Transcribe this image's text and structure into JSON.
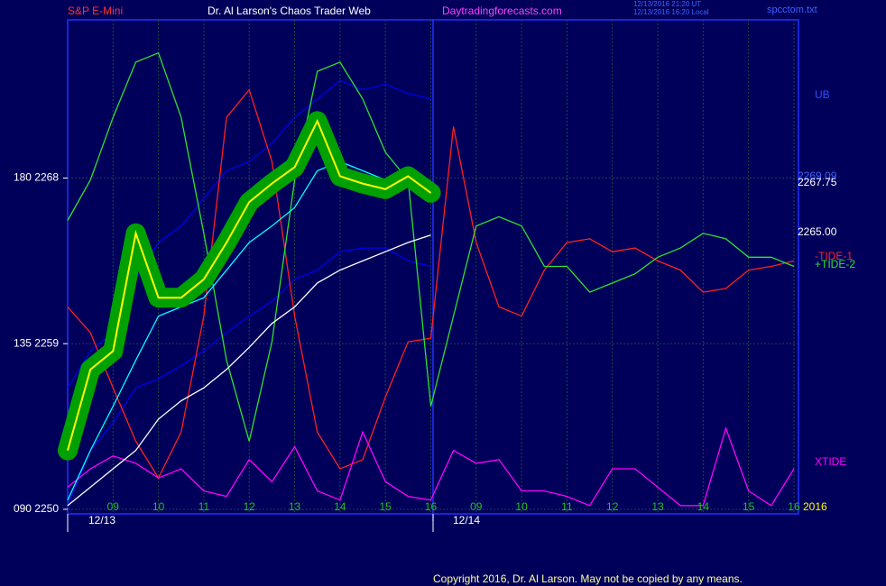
{
  "header": {
    "symbol": "S&P E-Mini",
    "title": "Dr. Al Larson's Chaos Trader Web",
    "site": "Daytradingforecasts.com",
    "time_ut": "12/13/2016 21:20 UT",
    "time_local": "12/13/2016 16:20 Local",
    "file": "spcctom.txt"
  },
  "chart_data": {
    "type": "line",
    "xlim": [
      8,
      24.1
    ],
    "ylim": [
      2249.75,
      2276.6
    ],
    "grid": true,
    "xticks": [
      {
        "value": 9,
        "label": "09"
      },
      10,
      11,
      12,
      13,
      14,
      15,
      16,
      {
        "value": 17,
        "label": "09"
      },
      {
        "value": 18,
        "label": "10"
      },
      {
        "value": 19,
        "label": "11"
      },
      {
        "value": 20,
        "label": "12"
      },
      {
        "value": 21,
        "label": "13"
      },
      {
        "value": 22,
        "label": "14"
      },
      {
        "value": 23,
        "label": "15"
      },
      {
        "value": 24,
        "label": "16"
      }
    ],
    "yticks": [
      {
        "value": 2268,
        "label": "180  2268"
      },
      {
        "value": 2259,
        "label": "135  2259"
      },
      {
        "value": 2250,
        "label": "090  2250"
      }
    ],
    "series": [
      {
        "name": "UB",
        "color": "#0000ee",
        "x": [
          8,
          8.5,
          9,
          9.5,
          10,
          10.5,
          11,
          11.5,
          12,
          12.5,
          13,
          13.5,
          14,
          14.5,
          15,
          15.5,
          16
        ],
        "values": [
          2256.6,
          2258.6,
          2259.6,
          2262.5,
          2264.5,
          2265.4,
          2266.9,
          2268.4,
          2268.9,
          2269.9,
          2271.3,
          2272.3,
          2273.3,
          2272.8,
          2273.1,
          2272.6,
          2272.3
        ]
      },
      {
        "color": "#0000ee",
        "x": [
          8,
          8.5,
          9,
          9.5,
          10,
          10.5,
          11,
          11.5,
          12,
          12.5,
          13,
          13.5,
          14,
          14.5,
          15,
          15.5,
          16
        ],
        "values": [
          2250.2,
          2253.2,
          2254.7,
          2256.6,
          2257.1,
          2257.8,
          2258.6,
          2259.6,
          2260.5,
          2261.3,
          2262.5,
          2263.0,
          2264.0,
          2264.2,
          2264.2,
          2263.5,
          2263.2
        ]
      },
      {
        "name": "-TIDE-1",
        "color": "#ff2020",
        "x": [
          8,
          8.5,
          9,
          9.5,
          10,
          10.5,
          11,
          11.5,
          12,
          12.5,
          13,
          13.5,
          14,
          14.5,
          15,
          15.5,
          16,
          16.5,
          17,
          17.5,
          18,
          18.5,
          19,
          19.5,
          20,
          20.5,
          21,
          21.5,
          22,
          22.5,
          23,
          23.5,
          24
        ],
        "values": [
          2261.0,
          2259.6,
          2256.6,
          2253.7,
          2251.7,
          2254.2,
          2260.5,
          2271.3,
          2272.8,
          2268.9,
          2260.5,
          2254.2,
          2252.2,
          2252.7,
          2256.1,
          2259.1,
          2259.3,
          2270.8,
          2264.5,
          2261.0,
          2260.5,
          2263.0,
          2264.5,
          2264.7,
          2264.0,
          2264.2,
          2263.5,
          2263.0,
          2261.8,
          2262.0,
          2263.0,
          2263.2,
          2263.5
        ]
      },
      {
        "name": "+TIDE-2",
        "color": "#30e030",
        "x": [
          8,
          8.5,
          9,
          9.5,
          10,
          10.5,
          11,
          11.5,
          12,
          12.5,
          13,
          13.5,
          14,
          14.5,
          15,
          15.5,
          16,
          16.5,
          17,
          17.5,
          18,
          18.5,
          19,
          19.5,
          20,
          20.5,
          21,
          21.5,
          22,
          22.5,
          23,
          23.5,
          24
        ],
        "values": [
          2265.7,
          2267.9,
          2271.3,
          2274.3,
          2274.8,
          2271.3,
          2265.0,
          2258.1,
          2253.7,
          2259.1,
          2267.9,
          2273.8,
          2274.3,
          2272.3,
          2269.4,
          2267.9,
          2255.6,
          2260.5,
          2265.4,
          2265.9,
          2265.4,
          2263.2,
          2263.2,
          2261.8,
          2262.3,
          2262.8,
          2263.7,
          2264.2,
          2265.0,
          2264.7,
          2263.7,
          2263.7,
          2263.2
        ]
      },
      {
        "name": "XTIDE",
        "color": "#ff00ff",
        "x": [
          8,
          8.5,
          9,
          9.5,
          10,
          10.5,
          11,
          11.5,
          12,
          12.5,
          13,
          13.5,
          14,
          14.5,
          15,
          15.5,
          16,
          16.5,
          17,
          17.5,
          18,
          18.5,
          19,
          19.5,
          20,
          20.5,
          21,
          21.5,
          22,
          22.5,
          23,
          23.5,
          24
        ],
        "values": [
          2251.2,
          2252.2,
          2252.9,
          2252.5,
          2251.7,
          2252.2,
          2251.0,
          2250.7,
          2252.7,
          2251.5,
          2253.4,
          2251.0,
          2250.5,
          2254.2,
          2251.5,
          2250.7,
          2250.5,
          2253.2,
          2252.5,
          2252.7,
          2251.0,
          2251.0,
          2250.7,
          2250.2,
          2252.2,
          2252.2,
          2251.2,
          2250.2,
          2250.2,
          2254.4,
          2251.0,
          2250.2,
          2252.2
        ]
      },
      {
        "color": "#ffffff",
        "x": [
          8,
          8.5,
          9,
          9.5,
          10,
          10.5,
          11,
          11.5,
          12,
          12.5,
          13,
          13.5,
          14,
          14.5,
          15,
          15.5,
          16
        ],
        "values": [
          2250.2,
          2251.2,
          2252.2,
          2253.2,
          2254.9,
          2255.9,
          2256.6,
          2257.6,
          2258.8,
          2260.1,
          2261.0,
          2262.3,
          2263.0,
          2263.5,
          2264.0,
          2264.5,
          2264.9
        ]
      },
      {
        "color": "#00ffff",
        "x": [
          8,
          8.5,
          9,
          9.5,
          10,
          10.5,
          11,
          11.5,
          12,
          12.5,
          13,
          13.5,
          14,
          14.5,
          15,
          15.5,
          16
        ],
        "values": [
          2250.5,
          2253.2,
          2255.6,
          2258.1,
          2260.5,
          2261.0,
          2261.5,
          2263.0,
          2264.5,
          2265.4,
          2266.4,
          2268.4,
          2268.9,
          2268.4,
          2267.9,
          2267.9,
          2267.7
        ]
      },
      {
        "color": "#ffff00",
        "halo_color": "#00a000",
        "x": [
          8,
          8.5,
          9,
          9.5,
          10,
          10.5,
          11,
          11.5,
          12,
          12.5,
          13,
          13.5,
          14,
          14.5,
          15,
          15.5,
          16
        ],
        "values": [
          2253.2,
          2257.6,
          2258.6,
          2265.0,
          2261.5,
          2261.5,
          2262.5,
          2264.5,
          2266.7,
          2267.7,
          2268.6,
          2271.1,
          2268.1,
          2267.7,
          2267.4,
          2268.1,
          2267.2
        ]
      }
    ],
    "annotations": [
      {
        "text": "2269.09",
        "color": "#4060ff"
      },
      {
        "text": "2267.75",
        "color": "#ffffff"
      },
      {
        "text": "2265.00",
        "color": "#ffffff"
      },
      {
        "text": "2016",
        "color": "#ffff00"
      },
      {
        "text": "12/13",
        "color": "#ffffff"
      },
      {
        "text": "12/14",
        "color": "#ffffff"
      }
    ]
  },
  "footer": {
    "copyright": "Copyright 2016, Dr. Al Larson. May not be copied by any means."
  }
}
